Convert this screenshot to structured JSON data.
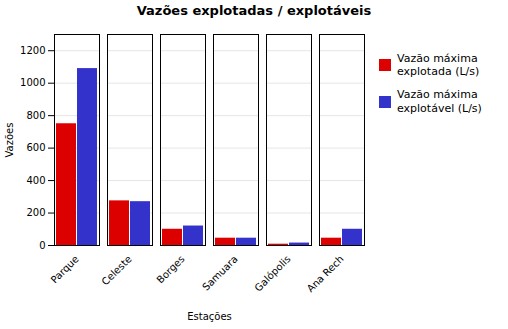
{
  "chart_data": {
    "type": "bar",
    "title": "Vazões explotadas / explotáveis",
    "categories": [
      "Parque",
      "Celeste",
      "Borges",
      "Samuara",
      "Galópolis",
      "Ana Rech"
    ],
    "series": [
      {
        "name": "Vazão máxima\nexplotada (L/s)",
        "color": "#dd0000",
        "values": [
          750,
          275,
          100,
          45,
          8,
          45
        ]
      },
      {
        "name": "Vazão máxima\nexplotável (L/s)",
        "color": "#3333cc",
        "values": [
          1090,
          270,
          120,
          45,
          15,
          100
        ]
      }
    ],
    "ylabel": "Vazões",
    "xlabel": "Estações",
    "ylim": [
      0,
      1300
    ],
    "yticks": [
      0,
      200,
      400,
      600,
      800,
      1000,
      1200
    ],
    "grid": true,
    "legend": "right"
  }
}
